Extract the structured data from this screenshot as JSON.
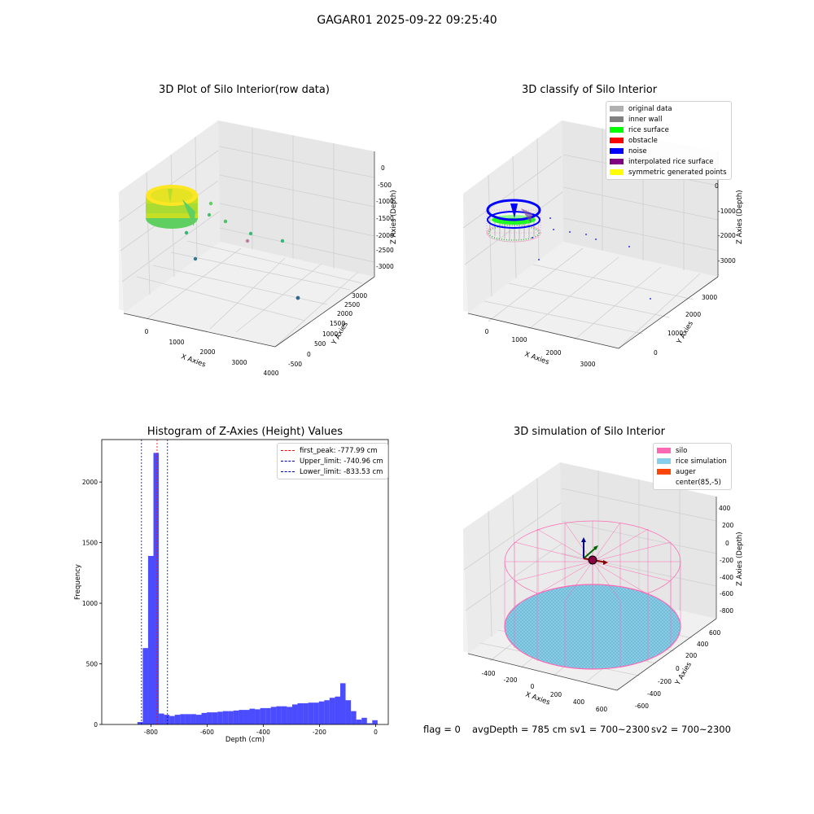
{
  "figure": {
    "suptitle": "GAGAR01 2025-09-22 09:25:40"
  },
  "status_bar": {
    "flag": "flag = 0",
    "avg_depth": "avgDepth = 785 cm",
    "sv1": "sv1 = 700~2300",
    "sv2": "sv2 = 700~2300"
  },
  "chart_data": [
    {
      "type": "scatter",
      "projection": "3d",
      "title": "3D Plot of Silo Interior(row data)",
      "xlabel": "X Axies",
      "ylabel": "Y Axies",
      "zlabel": "Z Axies (Depth)",
      "x_ticks": [
        "0",
        "1000",
        "2000",
        "3000",
        "4000"
      ],
      "y_ticks": [
        "-500",
        "0",
        "500",
        "1000",
        "1500",
        "2000",
        "2500",
        "3000"
      ],
      "z_ticks": [
        "0",
        "-500",
        "-1000",
        "-1500",
        "-2000",
        "-2500",
        "-3000"
      ],
      "colormap": "viridis",
      "outliers": [
        {
          "x": 1500,
          "y": 2400,
          "z": -1050
        },
        {
          "x": 1400,
          "y": 2000,
          "z": -1300
        },
        {
          "x": 1700,
          "y": 2400,
          "z": -1500
        },
        {
          "x": 2100,
          "y": 2300,
          "z": -2000
        },
        {
          "x": 2600,
          "y": 2300,
          "z": -2200
        },
        {
          "x": 1800,
          "y": 1800,
          "z": -2200
        },
        {
          "x": 1000,
          "y": 1600,
          "z": -1900
        },
        {
          "x": 900,
          "y": 900,
          "z": -2600
        },
        {
          "x": 3300,
          "y": 1300,
          "z": -3000
        }
      ]
    },
    {
      "type": "scatter",
      "projection": "3d",
      "title": "3D classify of Silo Interior",
      "xlabel": "X Axies",
      "ylabel": "Y Axies",
      "zlabel": "Z Axies (Depth)",
      "x_ticks": [
        "0",
        "1000",
        "2000",
        "3000"
      ],
      "y_ticks": [
        "0",
        "1000",
        "2000",
        "3000"
      ],
      "z_ticks": [
        "0",
        "-1000",
        "-2000",
        "-3000"
      ],
      "legend_position": "top-right",
      "legend": [
        {
          "label": "original data",
          "color": "#b0b0b0"
        },
        {
          "label": "inner wall",
          "color": "#808080"
        },
        {
          "label": "rice surface",
          "color": "#00ff00"
        },
        {
          "label": "obstacle",
          "color": "#ff0000"
        },
        {
          "label": "noise",
          "color": "#0000ff"
        },
        {
          "label": "interpolated rice surface",
          "color": "#800080"
        },
        {
          "label": "symmetric generated points",
          "color": "#ffff00"
        }
      ]
    },
    {
      "type": "bar",
      "title": "Histogram of Z-Axies (Height) Values",
      "xlabel": "Depth (cm)",
      "ylabel": "Frequency",
      "xlim": [
        -975,
        45
      ],
      "ylim": [
        0,
        2350
      ],
      "x_ticks": [
        -800,
        -600,
        -400,
        -200,
        0
      ],
      "y_ticks": [
        0,
        500,
        1000,
        1500,
        2000
      ],
      "bar_color": "#0000ff",
      "bin_width": 19,
      "bin_starts": [
        -848,
        -829,
        -810,
        -791,
        -772,
        -753,
        -734,
        -715,
        -696,
        -677,
        -658,
        -639,
        -620,
        -601,
        -582,
        -563,
        -544,
        -525,
        -506,
        -487,
        -468,
        -449,
        -430,
        -411,
        -392,
        -373,
        -354,
        -335,
        -316,
        -297,
        -278,
        -259,
        -240,
        -221,
        -202,
        -183,
        -164,
        -145,
        -126,
        -107,
        -88,
        -69,
        -50,
        -31,
        -12
      ],
      "values": [
        20,
        630,
        1390,
        2240,
        90,
        80,
        70,
        80,
        85,
        85,
        85,
        80,
        95,
        100,
        100,
        105,
        110,
        110,
        115,
        120,
        120,
        130,
        125,
        135,
        135,
        145,
        150,
        150,
        145,
        165,
        175,
        175,
        180,
        180,
        190,
        200,
        220,
        230,
        340,
        200,
        110,
        40,
        55,
        10,
        35
      ],
      "lines": [
        {
          "label": "first_peak: -777.99 cm",
          "x": -777.99,
          "color": "#ff0000"
        },
        {
          "label": "Upper_limit: -740.96 cm",
          "x": -740.96,
          "color": "#0000aa"
        },
        {
          "label": "Lower_limit: -833.53 cm",
          "x": -833.53,
          "color": "#0000aa"
        }
      ],
      "legend_position": "top-right"
    },
    {
      "type": "scatter",
      "projection": "3d",
      "title": "3D simulation of Silo Interior",
      "xlabel": "X Axies",
      "ylabel": "Y Axies",
      "zlabel": "Z Axies (Depth)",
      "x_ticks": [
        "-400",
        "-200",
        "0",
        "200",
        "400",
        "600"
      ],
      "y_ticks": [
        "-600",
        "-400",
        "-200",
        "0",
        "200",
        "400",
        "600"
      ],
      "z_ticks": [
        "400",
        "200",
        "0",
        "-200",
        "-400",
        "-600",
        "-800"
      ],
      "legend_position": "top-right",
      "legend": [
        {
          "label": "silo",
          "color": "#ff69b4"
        },
        {
          "label": "rice simulation",
          "color": "#87ceeb"
        },
        {
          "label": "auger",
          "color": "#ff4500"
        },
        {
          "label": "center(85,-5)",
          "color": ""
        }
      ]
    }
  ]
}
